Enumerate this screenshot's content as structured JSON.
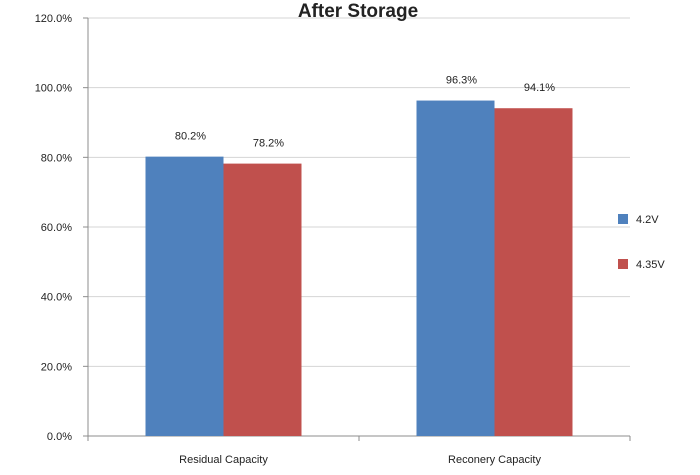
{
  "chart_data": {
    "type": "bar",
    "title": "After Storage",
    "xlabel": "",
    "ylabel": "",
    "categories": [
      "Residual Capacity",
      "Reconery Capacity"
    ],
    "series": [
      {
        "name": "4.2V",
        "color": "#4f81bd",
        "values": [
          80.2,
          96.3
        ],
        "labels": [
          "80.2%",
          "96.3%"
        ]
      },
      {
        "name": "4.35V",
        "color": "#c0504d",
        "values": [
          78.2,
          94.1
        ],
        "labels": [
          "78.2%",
          "94.1%"
        ]
      }
    ],
    "ylim": [
      0,
      120
    ],
    "yticks": [
      0,
      20,
      40,
      60,
      80,
      100,
      120
    ],
    "ytick_labels": [
      "0.0%",
      "20.0%",
      "40.0%",
      "60.0%",
      "80.0%",
      "100.0%",
      "120.0%"
    ],
    "grid": true,
    "legend_position": "right"
  }
}
